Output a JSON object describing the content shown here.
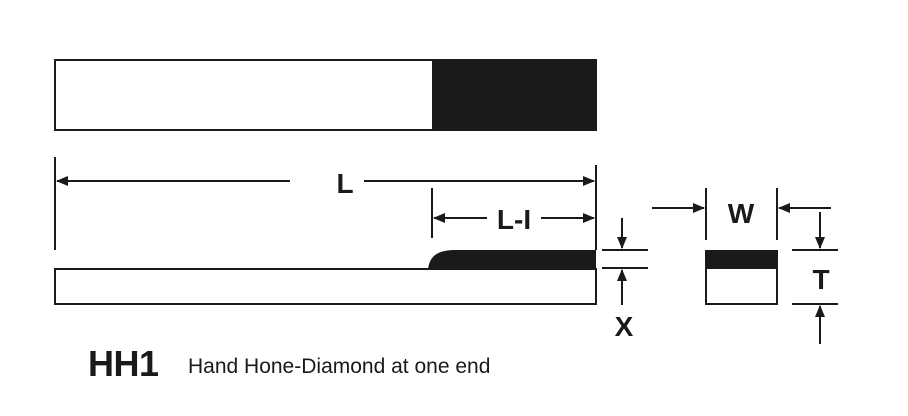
{
  "labels": {
    "length": "L",
    "length_minus_i": "L-I",
    "width": "W",
    "thickness": "T",
    "x": "X"
  },
  "title": {
    "code": "HH1",
    "description": "Hand Hone-Diamond at one end"
  },
  "colors": {
    "ink": "#1a1a1a",
    "diamond": "#1a1a1a",
    "background": "#ffffff"
  }
}
